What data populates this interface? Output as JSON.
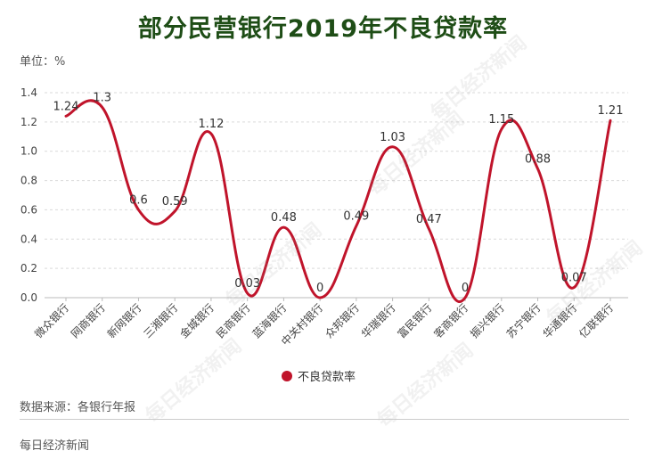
{
  "header": {
    "title": "部分民营银行2019年不良贷款率",
    "unit": "单位：%"
  },
  "footer": {
    "source": "数据来源：各银行年报",
    "brand": "每日经济新闻"
  },
  "watermark": "每日经济新闻",
  "colors": {
    "title": "#1e4d16",
    "series": "#c0142b",
    "grid": "#d9d9d9"
  },
  "chart_data": {
    "type": "line",
    "title": "部分民营银行2019年不良贷款率",
    "xlabel": "",
    "ylabel": "单位：%",
    "ylim": [
      0,
      1.4
    ],
    "yticks": [
      "0.0",
      "0.2",
      "0.4",
      "0.6",
      "0.8",
      "1.0",
      "1.2",
      "1.4"
    ],
    "grid": "horizontal-dashed",
    "legend": "bottom-center",
    "smooth": true,
    "categories": [
      "微众银行",
      "网商银行",
      "新网银行",
      "三湘银行",
      "金城银行",
      "民商银行",
      "蓝海银行",
      "中关村银行",
      "众邦银行",
      "华瑞银行",
      "富民银行",
      "客商银行",
      "振兴银行",
      "苏宁银行",
      "华通银行",
      "亿联银行"
    ],
    "series": [
      {
        "name": "不良贷款率",
        "values": [
          1.24,
          1.3,
          0.6,
          0.59,
          1.12,
          0.03,
          0.48,
          0,
          0.49,
          1.03,
          0.47,
          0,
          1.15,
          0.88,
          0.07,
          1.21
        ],
        "labels": [
          "1.24",
          "1.3",
          "0.6",
          "0.59",
          "1.12",
          "0.03",
          "0.48",
          "0",
          "0.49",
          "1.03",
          "0.47",
          "0",
          "1.15",
          "0.88",
          "0.07",
          "1.21"
        ]
      }
    ]
  }
}
